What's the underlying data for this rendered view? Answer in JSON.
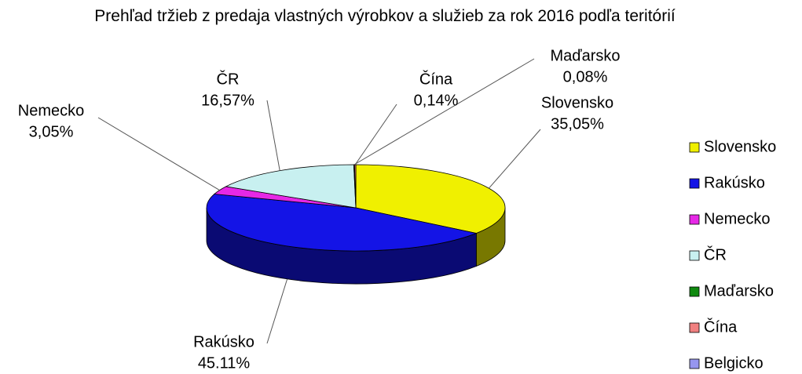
{
  "chart_data": {
    "type": "pie3d",
    "title": "Prehľad tržieb z predaja vlastných výrobkov a služieb za rok 2016 podľa teritórií",
    "categories": [
      "Slovensko",
      "Rakúsko",
      "Nemecko",
      "ČR",
      "Maďarsko",
      "Čína",
      "Belgicko"
    ],
    "values": [
      35.05,
      45.11,
      3.05,
      16.57,
      0.08,
      0.14,
      0
    ],
    "value_labels": [
      "35,05%",
      "45.11%",
      "3,05%",
      "16,57%",
      "0,08%",
      "0,14%",
      null
    ],
    "colors": [
      "#f0f000",
      "#1414e6",
      "#e628e6",
      "#c8f0f0",
      "#108a10",
      "#f08080",
      "#9696f0"
    ],
    "legend": "right"
  }
}
